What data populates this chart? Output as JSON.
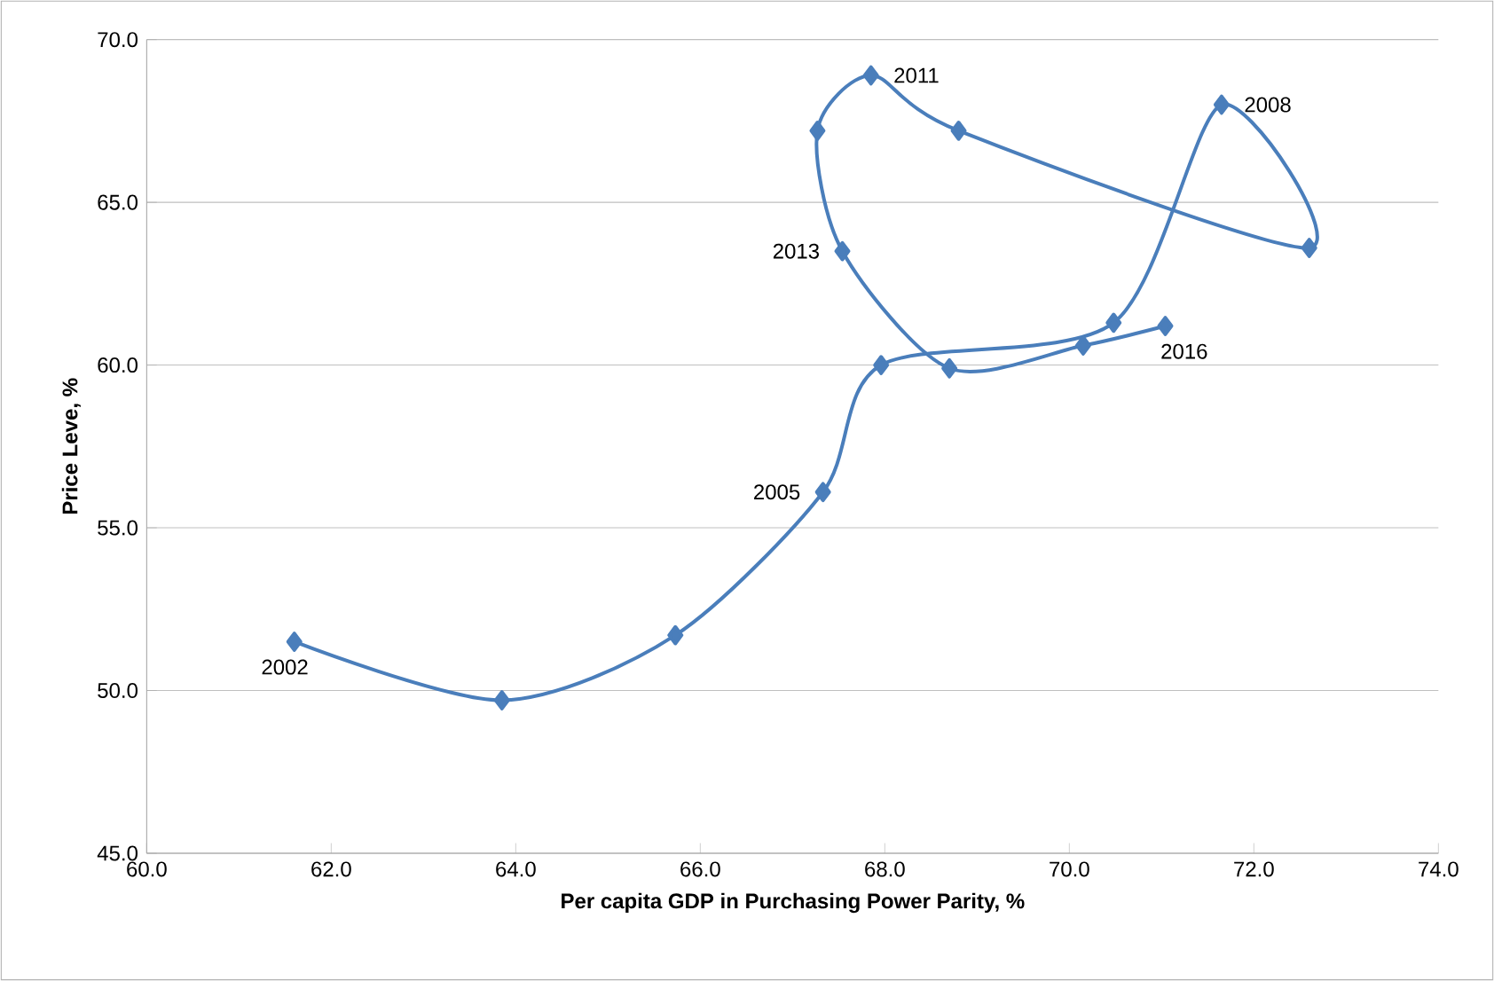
{
  "chart_data": {
    "type": "line",
    "xlabel": "Per capita GDP in Purchasing Power Parity, %",
    "ylabel": "Price Leve, %",
    "x": [
      61.6,
      63.85,
      65.73,
      67.33,
      67.96,
      70.48,
      71.65,
      72.6,
      68.8,
      67.85,
      67.27,
      67.54,
      68.7,
      70.15,
      71.04
    ],
    "values": [
      51.5,
      49.7,
      51.7,
      56.1,
      60.0,
      61.3,
      68.0,
      63.6,
      67.2,
      68.9,
      67.2,
      63.5,
      59.9,
      60.6,
      61.2
    ],
    "color": "#4a7ebb",
    "marker": "diamond",
    "line_style": "solid",
    "grid": "y",
    "xlim": [
      60,
      74
    ],
    "ylim": [
      45,
      70
    ],
    "xticks": [
      {
        "value": 60,
        "label": "60.0"
      },
      {
        "value": 62,
        "label": "62.0"
      },
      {
        "value": 64,
        "label": "64.0"
      },
      {
        "value": 66,
        "label": "66.0"
      },
      {
        "value": 68,
        "label": "68.0"
      },
      {
        "value": 70,
        "label": "70.0"
      },
      {
        "value": 72,
        "label": "72.0"
      },
      {
        "value": 74,
        "label": "74.0"
      }
    ],
    "yticks": [
      {
        "value": 45,
        "label": "45.0"
      },
      {
        "value": 50,
        "label": "50.0"
      },
      {
        "value": 55,
        "label": "55.0"
      },
      {
        "value": 60,
        "label": "60.0"
      },
      {
        "value": 65,
        "label": "65.0"
      },
      {
        "value": 70,
        "label": "70.0"
      }
    ],
    "annotations": [
      {
        "text": "2002",
        "x": 61.6,
        "y": 51.5
      },
      {
        "text": "2005",
        "x": 67.33,
        "y": 56.1
      },
      {
        "text": "2008",
        "x": 71.65,
        "y": 68.0
      },
      {
        "text": "2011",
        "x": 67.85,
        "y": 68.9
      },
      {
        "text": "2013",
        "x": 67.54,
        "y": 63.5
      },
      {
        "text": "2016",
        "x": 71.04,
        "y": 61.2
      }
    ]
  }
}
